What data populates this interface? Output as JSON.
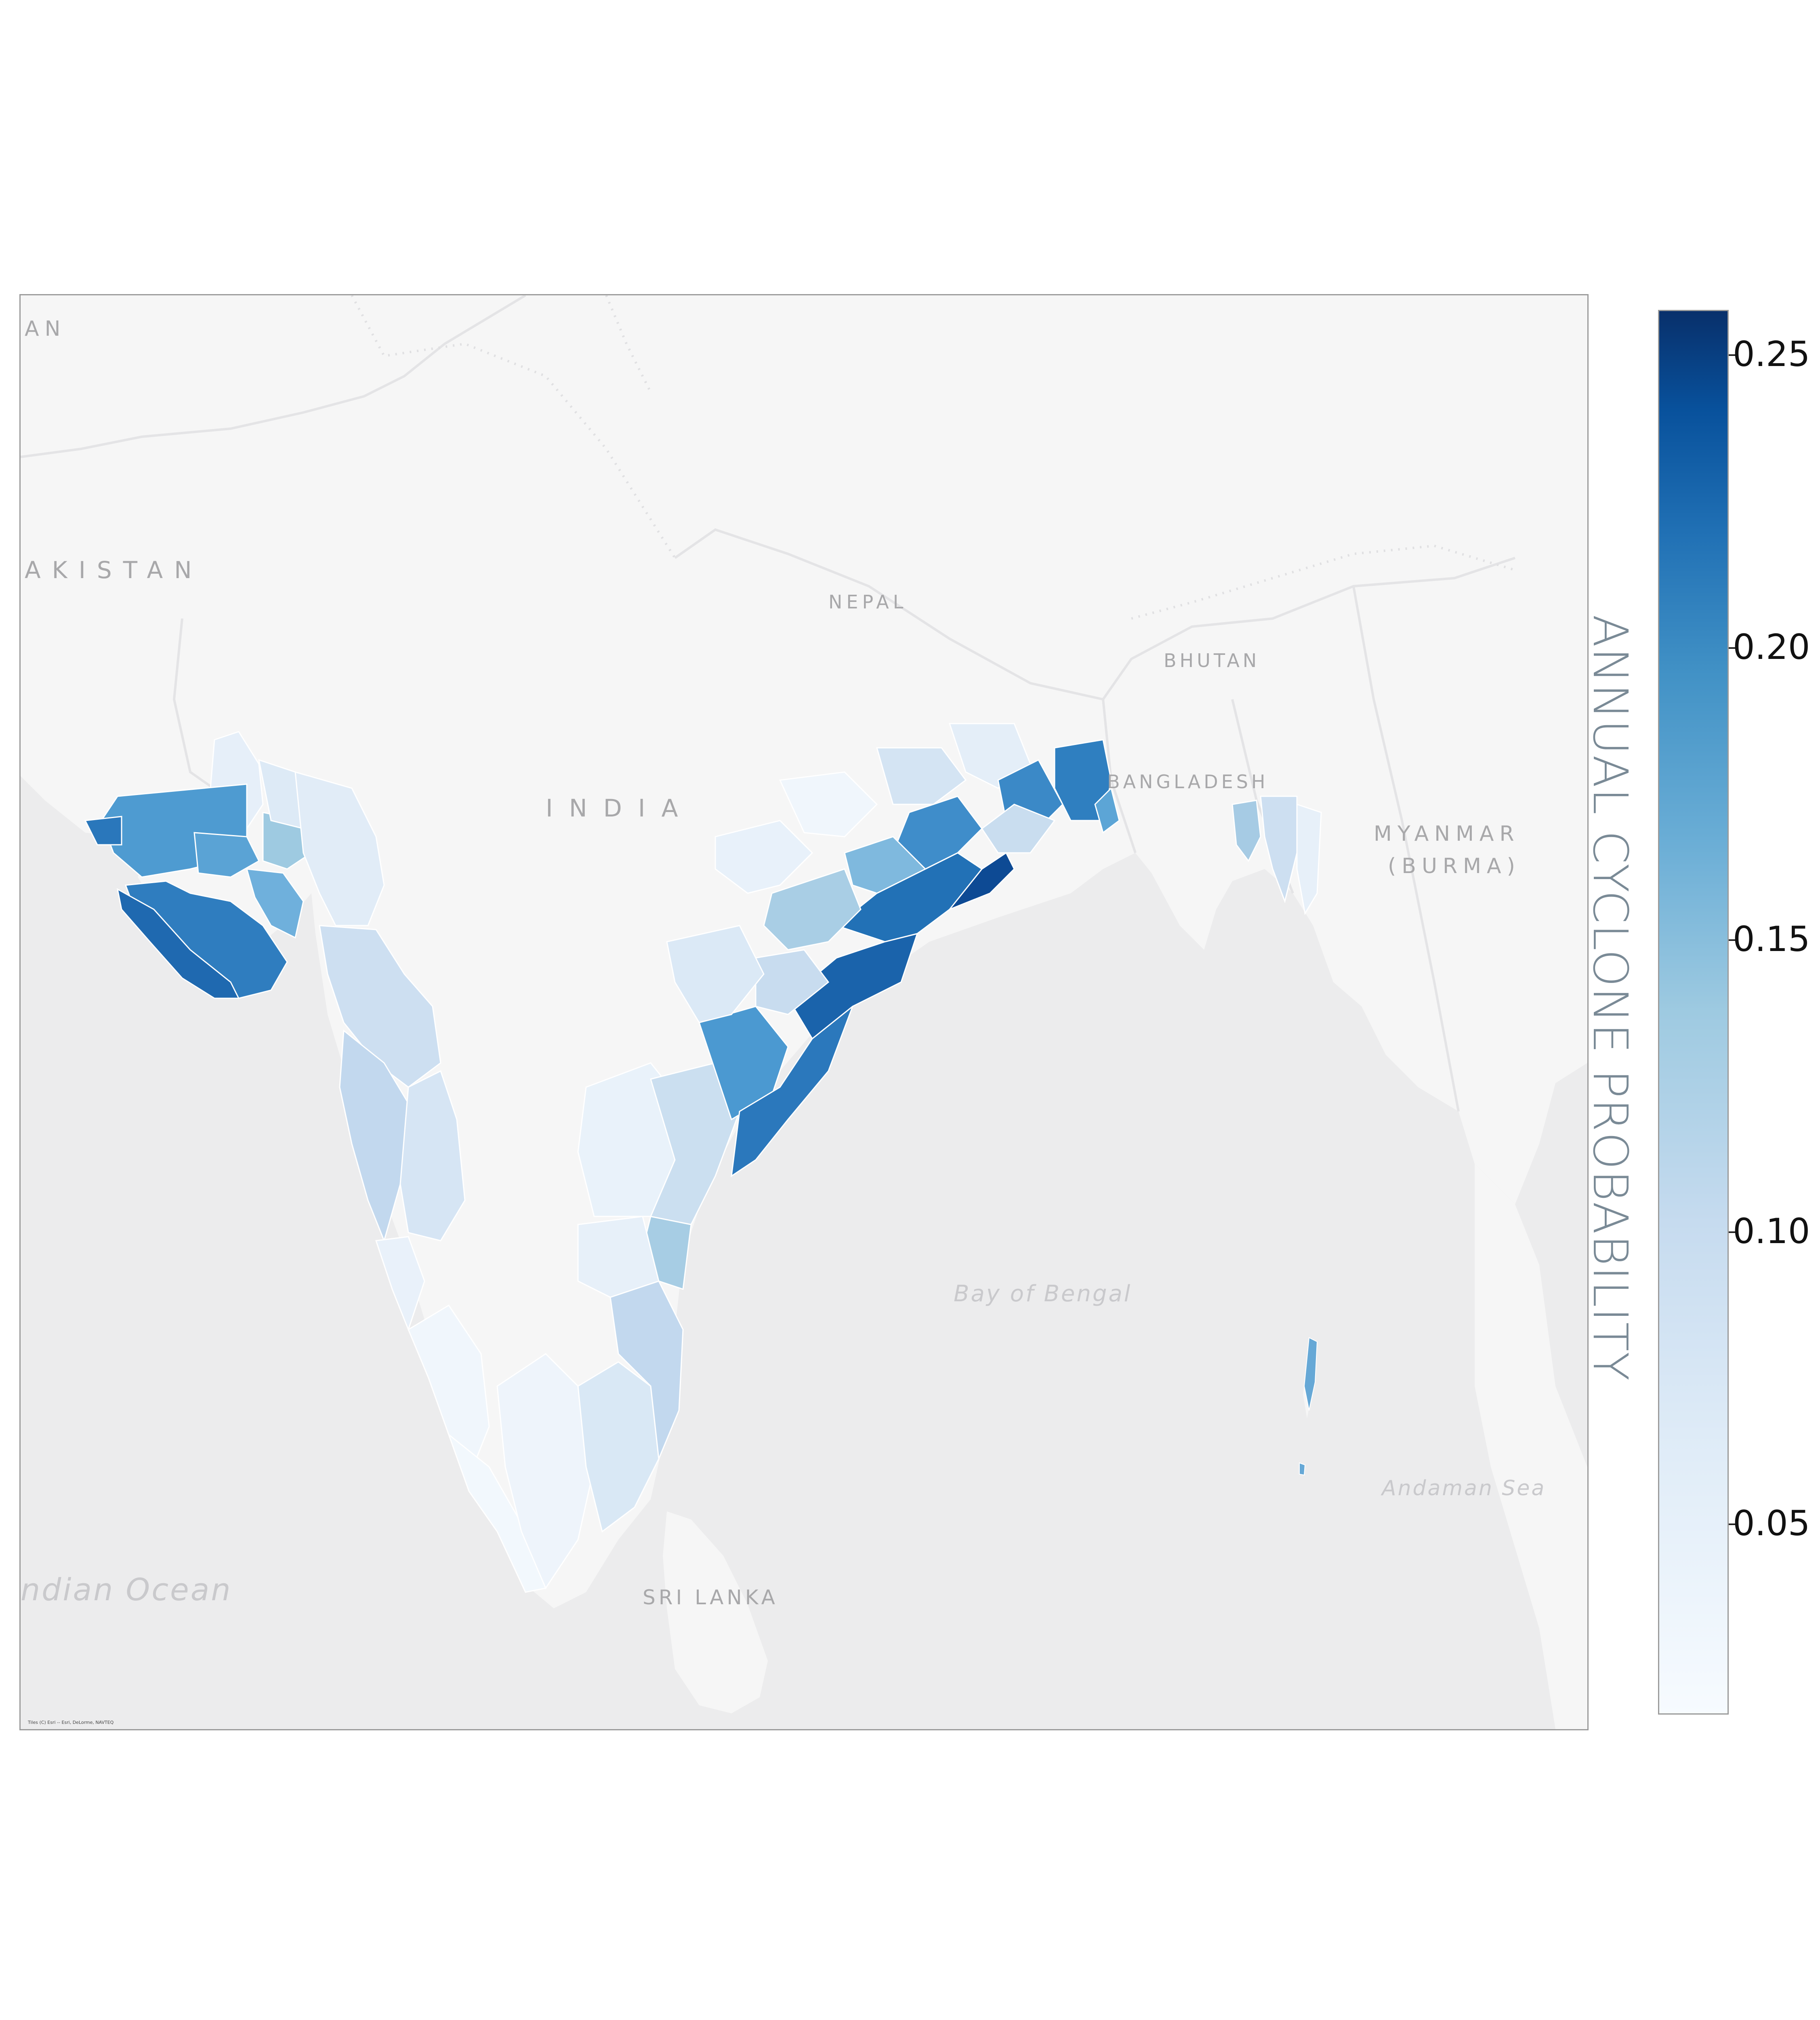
{
  "map": {
    "labels": {
      "pakistan_top": "AN",
      "pakistan": "AKISTAN",
      "nepal": "NEPAL",
      "bhutan": "BHUTAN",
      "india": "INDIA",
      "bangladesh": "BANGLADESH",
      "myanmar_1": "MYANMAR",
      "myanmar_2": "(BURMA)",
      "bay_of_bengal": "Bay of Bengal",
      "andaman_sea": "Andaman Sea",
      "indian_ocean": "ndian Ocean",
      "sri_lanka": "SRI LANKA"
    },
    "attribution": "Tiles (C) Esri -- Esri, DeLorme, NAVTEQ",
    "colors": {
      "water": "#ececed",
      "land": "#f6f6f6",
      "border": "#e2e2e4"
    }
  },
  "colorbar": {
    "label": "ANNUAL CYCLONE PROBABILITY",
    "ticks": [
      "0.25",
      "0.20",
      "0.15",
      "0.10",
      "0.05"
    ],
    "range": [
      0.015,
      0.258
    ],
    "colormap": "Blues",
    "colors": [
      "#f7fbff",
      "#deebf7",
      "#c6dbef",
      "#9ecae1",
      "#6baed6",
      "#4292c6",
      "#2171b5",
      "#08519c",
      "#08306b"
    ]
  }
}
